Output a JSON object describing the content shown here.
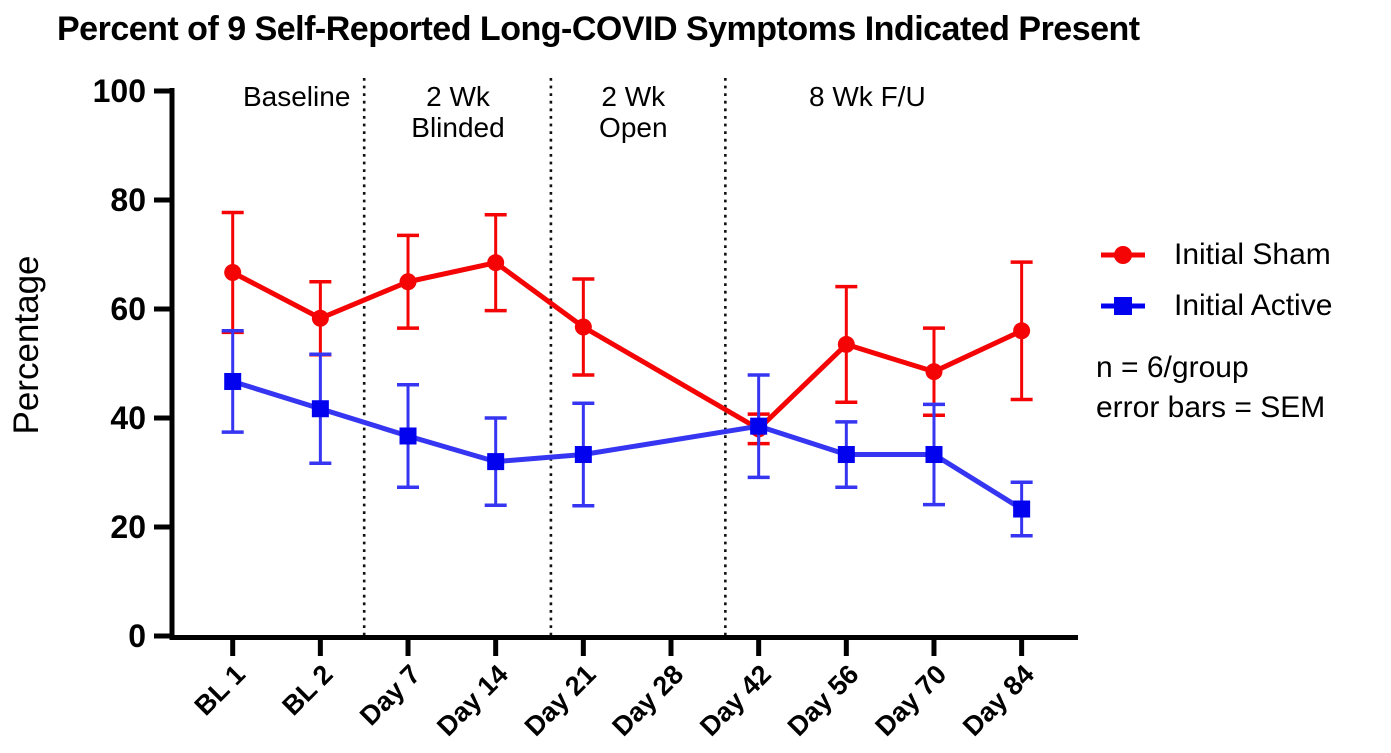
{
  "title": "Percent of 9 Self-Reported Long-COVID Symptoms Indicated Present",
  "legend": {
    "entries": [
      {
        "label": "Initial Sham",
        "marker": "circle",
        "color": "#f40404"
      },
      {
        "label": "Initial Active",
        "marker": "square",
        "color": "#0202ef"
      }
    ],
    "notes": [
      "n = 6/group",
      "error bars = SEM"
    ]
  },
  "chart_data": {
    "type": "line",
    "title": "Percent of 9 Self-Reported Long-COVID Symptoms Indicated Present",
    "xlabel": "",
    "ylabel": "Percentage",
    "ylim": [
      0,
      100
    ],
    "yticks": [
      0,
      20,
      40,
      60,
      80,
      100
    ],
    "grid": false,
    "legend_position": "right",
    "error_bar_type": "SEM",
    "n_per_group": 6,
    "categories": [
      "BL 1",
      "BL 2",
      "Day 7",
      "Day 14",
      "Day 21",
      "Day 28",
      "Day 42",
      "Day 56",
      "Day 70",
      "Day 84"
    ],
    "series": [
      {
        "name": "Initial Sham",
        "marker": "circle",
        "color": "#f40404",
        "line_color": "#f40404",
        "values": [
          66.7,
          58.3,
          65.0,
          68.5,
          56.7,
          null,
          38.0,
          53.5,
          48.5,
          56.0
        ],
        "sem": [
          11.0,
          6.7,
          8.5,
          8.8,
          8.8,
          null,
          2.7,
          10.6,
          8.0,
          12.6
        ]
      },
      {
        "name": "Initial Active",
        "marker": "square",
        "color": "#0202ef",
        "line_color": "#3636f2",
        "values": [
          46.7,
          41.7,
          36.7,
          32.0,
          33.3,
          null,
          38.5,
          33.3,
          33.3,
          23.3
        ],
        "sem": [
          9.3,
          10.0,
          9.4,
          8.0,
          9.4,
          null,
          9.4,
          6.0,
          9.2,
          4.9
        ]
      }
    ],
    "phases": [
      {
        "lines": [
          "Baseline"
        ],
        "center_at": 0.73
      },
      {
        "lines": [
          "2 Wk",
          "Blinded"
        ],
        "center_at": 2.57
      },
      {
        "lines": [
          "2 Wk",
          "Open"
        ],
        "center_at": 4.57
      },
      {
        "lines": [
          "8 Wk F/U"
        ],
        "center_at": 7.24
      }
    ],
    "phase_dividers_at": [
      1.5,
      3.63,
      5.62
    ]
  }
}
